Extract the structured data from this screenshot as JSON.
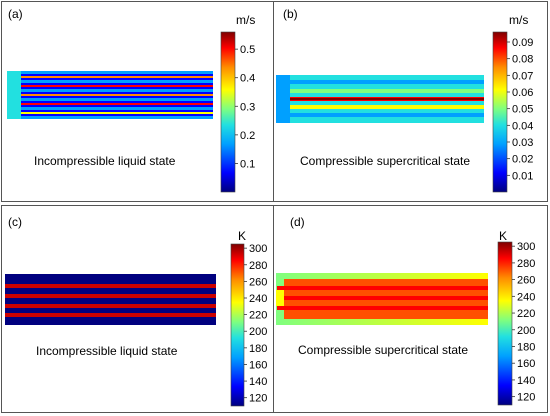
{
  "figure": {
    "panels": [
      {
        "id": "a",
        "label": "(a)",
        "caption": "Incompressible liquid state",
        "unit": "m/s",
        "ticks": [
          "0.1",
          "0.2",
          "0.3",
          "0.4",
          "0.5"
        ],
        "tick_values": [
          0.1,
          0.2,
          0.3,
          0.4,
          0.5
        ],
        "range": [
          0,
          0.56
        ]
      },
      {
        "id": "b",
        "label": "(b)",
        "caption": "Compressible supercritical state",
        "unit": "m/s",
        "ticks": [
          "0.01",
          "0.02",
          "0.03",
          "0.04",
          "0.05",
          "0.06",
          "0.07",
          "0.08",
          "0.09"
        ],
        "tick_values": [
          0.01,
          0.02,
          0.03,
          0.04,
          0.05,
          0.06,
          0.07,
          0.08,
          0.09
        ],
        "range": [
          0,
          0.096
        ]
      },
      {
        "id": "c",
        "label": "(c)",
        "caption": "Incompressible liquid state",
        "unit": "K",
        "ticks": [
          "120",
          "140",
          "160",
          "180",
          "200",
          "220",
          "240",
          "260",
          "280",
          "300"
        ],
        "tick_values": [
          120,
          140,
          160,
          180,
          200,
          220,
          240,
          260,
          280,
          300
        ],
        "range": [
          110,
          305
        ]
      },
      {
        "id": "d",
        "label": "(d)",
        "caption": "Compressible supercritical state",
        "unit": "K",
        "ticks": [
          "120",
          "140",
          "160",
          "180",
          "200",
          "220",
          "240",
          "260",
          "280",
          "300"
        ],
        "tick_values": [
          120,
          140,
          160,
          180,
          200,
          220,
          240,
          260,
          280,
          300
        ],
        "range": [
          110,
          305
        ]
      }
    ],
    "colormap": [
      "#00007f",
      "#0000ff",
      "#00a0ff",
      "#22e0e0",
      "#7fff7f",
      "#ffff00",
      "#ff8c00",
      "#ff0000",
      "#7f0000"
    ]
  }
}
